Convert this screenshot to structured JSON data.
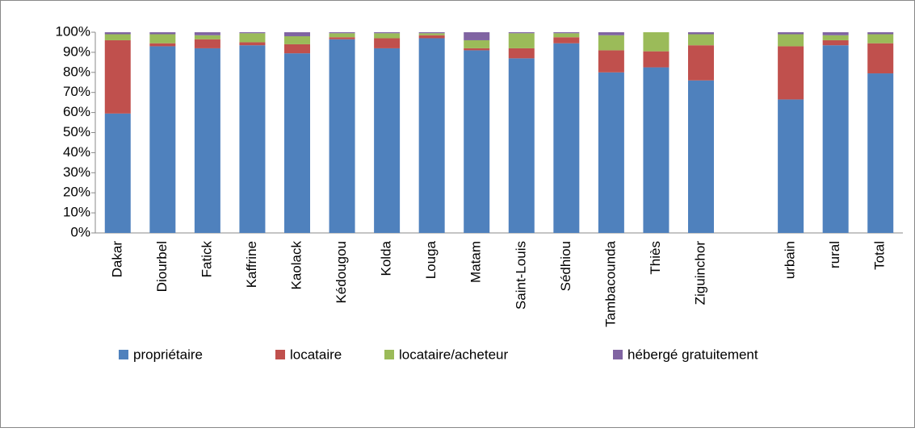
{
  "chart_data": {
    "type": "stacked_bar",
    "categories": [
      "Dakar",
      "Diourbel",
      "Fatick",
      "Kaffrine",
      "Kaolack",
      "Kédougou",
      "Kolda",
      "Louga",
      "Matam",
      "Saint-Louis",
      "Sédhiou",
      "Tambacounda",
      "Thiès",
      "Ziguinchor",
      null,
      "urbain",
      "rural",
      "Total"
    ],
    "series": [
      {
        "name": "propriétaire",
        "color": "#4f81bd",
        "values": [
          59.5,
          93,
          92,
          93.5,
          89.5,
          96.5,
          92,
          97,
          91,
          87,
          94.5,
          80,
          82.5,
          76,
          null,
          66.5,
          93.5,
          79.5
        ]
      },
      {
        "name": "locataire",
        "color": "#c0504d",
        "values": [
          36.5,
          1.5,
          4.5,
          1.5,
          4.5,
          1,
          5,
          1.5,
          1,
          5,
          3,
          11,
          8,
          17.5,
          null,
          26.5,
          2.5,
          15
        ]
      },
      {
        "name": "locataire/acheteur",
        "color": "#9bbb59",
        "values": [
          3,
          4.5,
          2,
          4.5,
          4,
          2,
          2.5,
          1,
          4,
          7.5,
          2,
          7.5,
          9.5,
          5.5,
          null,
          6,
          2.5,
          4.5
        ]
      },
      {
        "name": "hébergé gratuitement",
        "color": "#8064a2",
        "values": [
          1,
          1,
          1.5,
          0.5,
          2,
          0.5,
          0.5,
          0.5,
          4,
          0.5,
          0.5,
          1.5,
          0,
          1,
          null,
          1,
          1.5,
          1
        ]
      }
    ],
    "ylim": [
      0,
      100
    ],
    "yticks": [
      {
        "value": 0,
        "label": "0%"
      },
      {
        "value": 10,
        "label": "10%"
      },
      {
        "value": 20,
        "label": "20%"
      },
      {
        "value": 30,
        "label": "30%"
      },
      {
        "value": 40,
        "label": "40%"
      },
      {
        "value": 50,
        "label": "50%"
      },
      {
        "value": 60,
        "label": "60%"
      },
      {
        "value": 70,
        "label": "70%"
      },
      {
        "value": 80,
        "label": "80%"
      },
      {
        "value": 90,
        "label": "90%"
      },
      {
        "value": 100,
        "label": "100%"
      }
    ],
    "grid": false,
    "legend": "bottom"
  }
}
